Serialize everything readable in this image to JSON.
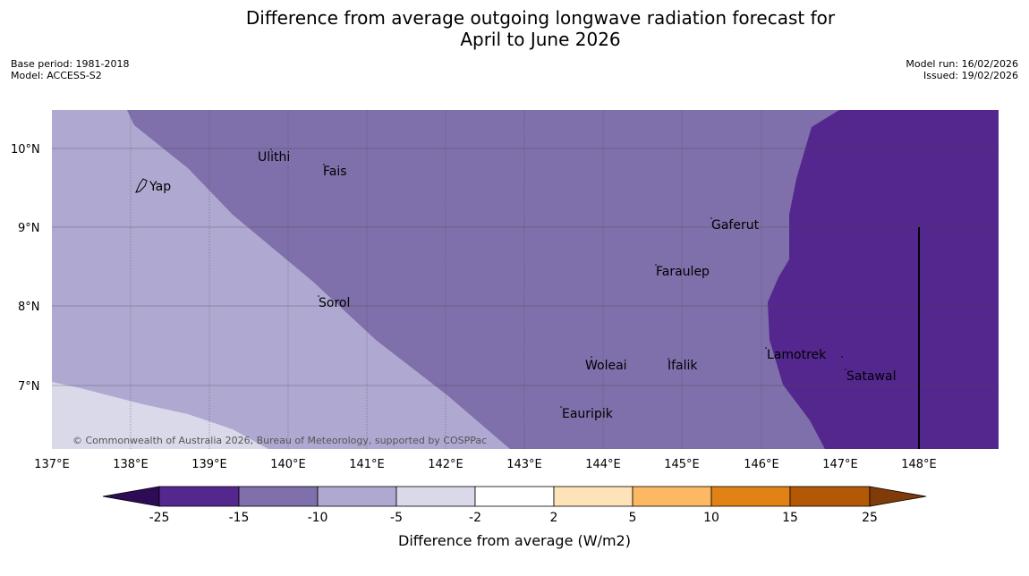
{
  "title_line1": "Difference from average outgoing longwave radiation forecast for",
  "title_line2": "April to June 2026",
  "base_period": "Base period: 1981-2018",
  "model": "Model: ACCESS-S2",
  "model_run": "Model run: 16/02/2026",
  "issued": "Issued: 19/02/2026",
  "copyright": "© Commonwealth of Australia 2026, Bureau of Meteorology, supported by COSPPac",
  "lon_labels": [
    "137°E",
    "138°E",
    "139°E",
    "140°E",
    "141°E",
    "142°E",
    "143°E",
    "144°E",
    "145°E",
    "146°E",
    "147°E",
    "148°E"
  ],
  "lat_labels": [
    "10°N",
    "9°N",
    "8°N",
    "7°N"
  ],
  "places": [
    "Yap",
    "Ulithi",
    "Fais",
    "Gaferut",
    "Faraulep",
    "Sorol",
    "Woleai",
    "Ifalik",
    "Lamotrek",
    "Satawal",
    "Eauripik"
  ],
  "colorbar": {
    "ticks": [
      "-25",
      "-15",
      "-10",
      "-5",
      "-2",
      "2",
      "5",
      "10",
      "15",
      "25"
    ],
    "label": "Difference from average (W/m2)",
    "colors": [
      "#2d0b57",
      "#54278f",
      "#7f6faa",
      "#afa8d1",
      "#d9d9ea",
      "#ffffff",
      "#fee2b8",
      "#fdb863",
      "#e08214",
      "#b35806",
      "#7f3b08"
    ]
  }
}
